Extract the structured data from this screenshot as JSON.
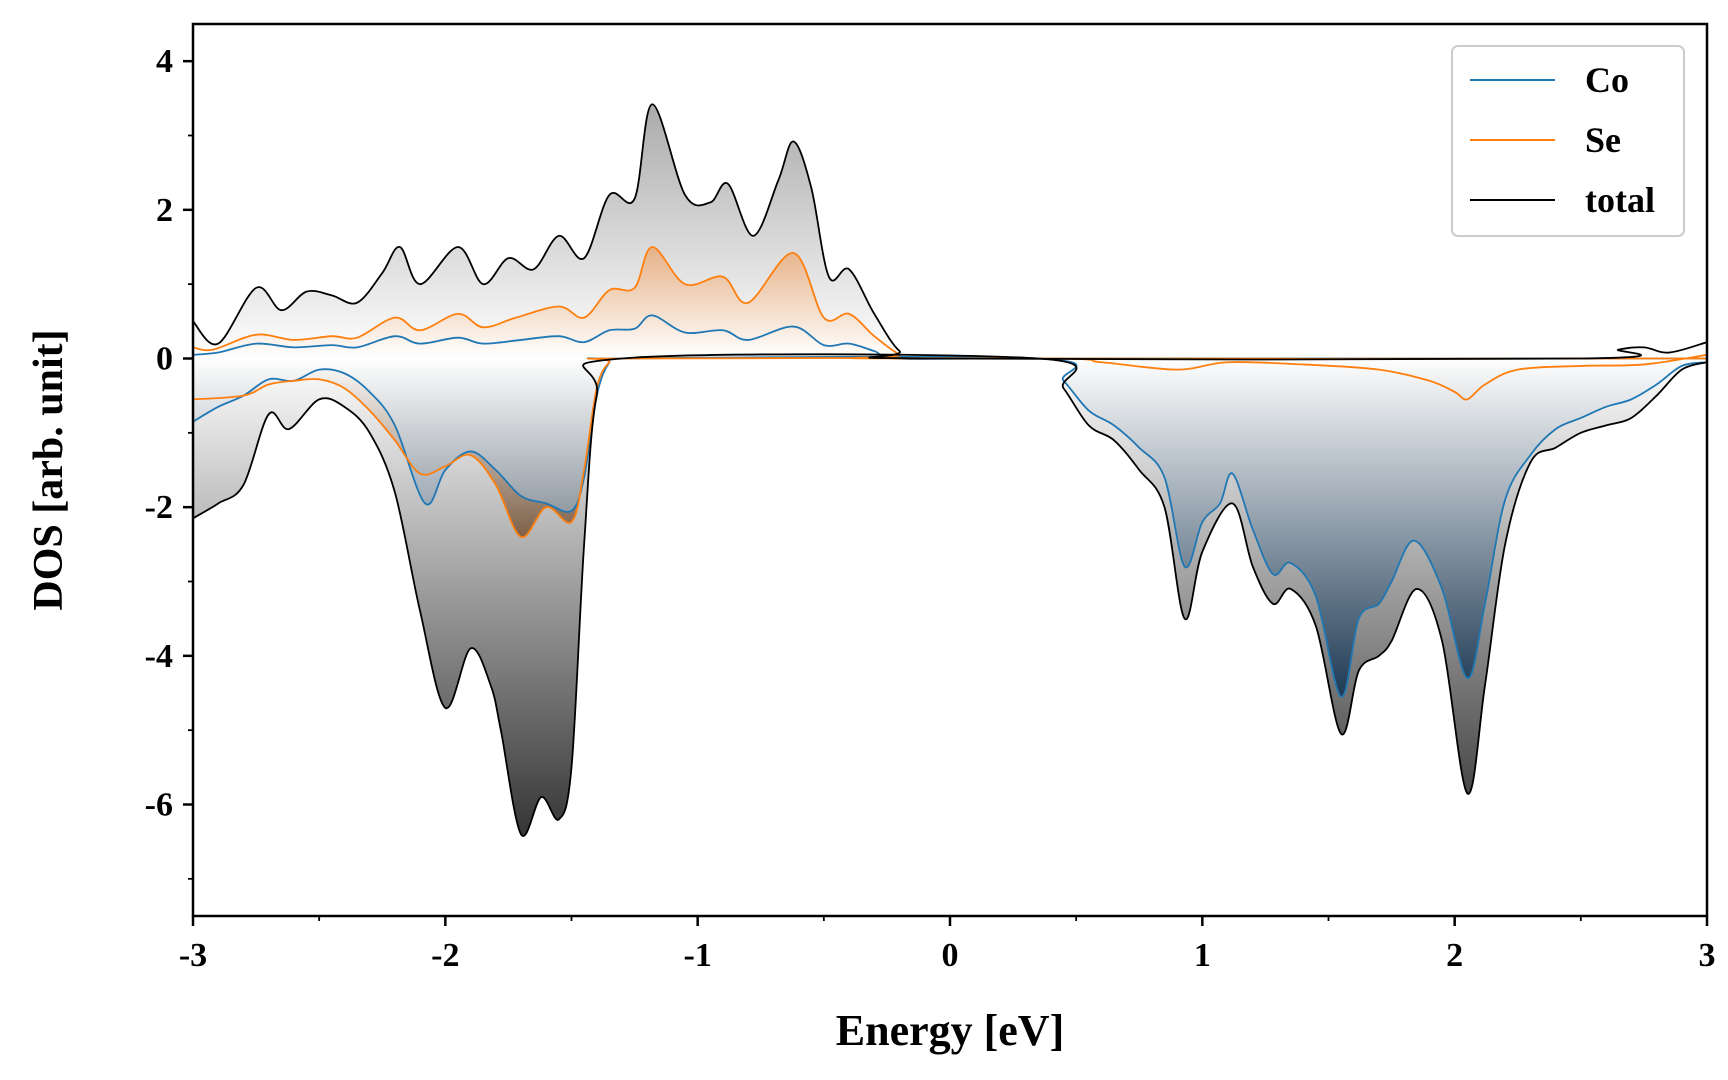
{
  "chart_data": {
    "type": "area",
    "xlabel": "Energy [eV]",
    "ylabel": "DOS [arb. unit]",
    "xlim": [
      -3,
      3
    ],
    "ylim": [
      -7.5,
      4.5
    ],
    "xticks": [
      -3,
      -2,
      -1,
      0,
      1,
      2,
      3
    ],
    "xtick_labels": [
      "-3",
      "-2",
      "-1",
      "0",
      "1",
      "2",
      "3"
    ],
    "yticks": [
      -6,
      -4,
      -2,
      0,
      2,
      4
    ],
    "ytick_labels": [
      "-6",
      "-4",
      "-2",
      "0",
      "2",
      "4"
    ],
    "grid": false,
    "legend_position": "top-right",
    "series": [
      {
        "name": "Co",
        "color": "#1f77b4",
        "spin_up": [
          [
            -3.0,
            0.05
          ],
          [
            -2.9,
            0.08
          ],
          [
            -2.75,
            0.2
          ],
          [
            -2.6,
            0.15
          ],
          [
            -2.45,
            0.18
          ],
          [
            -2.35,
            0.15
          ],
          [
            -2.2,
            0.3
          ],
          [
            -2.1,
            0.2
          ],
          [
            -1.95,
            0.28
          ],
          [
            -1.85,
            0.2
          ],
          [
            -1.7,
            0.25
          ],
          [
            -1.55,
            0.3
          ],
          [
            -1.45,
            0.22
          ],
          [
            -1.35,
            0.38
          ],
          [
            -1.25,
            0.4
          ],
          [
            -1.18,
            0.58
          ],
          [
            -1.05,
            0.35
          ],
          [
            -0.9,
            0.38
          ],
          [
            -0.8,
            0.25
          ],
          [
            -0.62,
            0.43
          ],
          [
            -0.5,
            0.18
          ],
          [
            -0.4,
            0.2
          ],
          [
            -0.3,
            0.1
          ],
          [
            -0.2,
            0.0
          ],
          [
            0.3,
            0.0
          ],
          [
            3.0,
            0.0
          ]
        ],
        "spin_down": [
          [
            -3.0,
            -0.85
          ],
          [
            -2.9,
            -0.65
          ],
          [
            -2.8,
            -0.5
          ],
          [
            -2.7,
            -0.28
          ],
          [
            -2.6,
            -0.3
          ],
          [
            -2.5,
            -0.15
          ],
          [
            -2.4,
            -0.2
          ],
          [
            -2.3,
            -0.45
          ],
          [
            -2.2,
            -0.9
          ],
          [
            -2.08,
            -1.95
          ],
          [
            -2.0,
            -1.5
          ],
          [
            -1.9,
            -1.25
          ],
          [
            -1.8,
            -1.5
          ],
          [
            -1.7,
            -1.85
          ],
          [
            -1.6,
            -1.95
          ],
          [
            -1.5,
            -2.05
          ],
          [
            -1.45,
            -1.6
          ],
          [
            -1.4,
            -0.5
          ],
          [
            -1.35,
            -0.05
          ],
          [
            -1.3,
            0.0
          ],
          [
            0.35,
            0.0
          ],
          [
            0.45,
            -0.3
          ],
          [
            0.55,
            -0.7
          ],
          [
            0.65,
            -0.9
          ],
          [
            0.75,
            -1.2
          ],
          [
            0.85,
            -1.6
          ],
          [
            0.93,
            -2.8
          ],
          [
            1.0,
            -2.2
          ],
          [
            1.07,
            -1.95
          ],
          [
            1.12,
            -1.55
          ],
          [
            1.2,
            -2.3
          ],
          [
            1.28,
            -2.9
          ],
          [
            1.35,
            -2.75
          ],
          [
            1.45,
            -3.2
          ],
          [
            1.55,
            -4.55
          ],
          [
            1.62,
            -3.5
          ],
          [
            1.7,
            -3.3
          ],
          [
            1.75,
            -3.0
          ],
          [
            1.84,
            -2.45
          ],
          [
            1.95,
            -3.1
          ],
          [
            2.05,
            -4.3
          ],
          [
            2.12,
            -3.3
          ],
          [
            2.2,
            -1.9
          ],
          [
            2.3,
            -1.3
          ],
          [
            2.4,
            -0.95
          ],
          [
            2.5,
            -0.8
          ],
          [
            2.6,
            -0.65
          ],
          [
            2.7,
            -0.55
          ],
          [
            2.8,
            -0.35
          ],
          [
            2.9,
            -0.1
          ],
          [
            3.0,
            -0.05
          ]
        ]
      },
      {
        "name": "Se",
        "color": "#ff7f0e",
        "spin_up": [
          [
            -3.0,
            0.15
          ],
          [
            -2.92,
            0.12
          ],
          [
            -2.75,
            0.32
          ],
          [
            -2.6,
            0.25
          ],
          [
            -2.45,
            0.3
          ],
          [
            -2.35,
            0.28
          ],
          [
            -2.2,
            0.55
          ],
          [
            -2.1,
            0.38
          ],
          [
            -1.95,
            0.6
          ],
          [
            -1.85,
            0.42
          ],
          [
            -1.72,
            0.55
          ],
          [
            -1.55,
            0.7
          ],
          [
            -1.45,
            0.55
          ],
          [
            -1.35,
            0.92
          ],
          [
            -1.25,
            0.95
          ],
          [
            -1.18,
            1.5
          ],
          [
            -1.05,
            1.0
          ],
          [
            -0.9,
            1.1
          ],
          [
            -0.8,
            0.75
          ],
          [
            -0.62,
            1.42
          ],
          [
            -0.5,
            0.55
          ],
          [
            -0.4,
            0.6
          ],
          [
            -0.3,
            0.3
          ],
          [
            -0.2,
            0.05
          ],
          [
            -0.15,
            0.0
          ],
          [
            3.0,
            0.0
          ]
        ],
        "spin_down": [
          [
            -3.0,
            -0.55
          ],
          [
            -2.8,
            -0.5
          ],
          [
            -2.7,
            -0.35
          ],
          [
            -2.6,
            -0.3
          ],
          [
            -2.5,
            -0.28
          ],
          [
            -2.4,
            -0.4
          ],
          [
            -2.3,
            -0.7
          ],
          [
            -2.2,
            -1.1
          ],
          [
            -2.1,
            -1.55
          ],
          [
            -2.0,
            -1.45
          ],
          [
            -1.9,
            -1.3
          ],
          [
            -1.8,
            -1.7
          ],
          [
            -1.7,
            -2.4
          ],
          [
            -1.6,
            -2.0
          ],
          [
            -1.5,
            -2.2
          ],
          [
            -1.45,
            -1.5
          ],
          [
            -1.4,
            -0.4
          ],
          [
            -1.35,
            -0.05
          ],
          [
            -1.3,
            0.0
          ],
          [
            0.35,
            0.0
          ],
          [
            0.6,
            -0.05
          ],
          [
            0.9,
            -0.15
          ],
          [
            1.1,
            -0.05
          ],
          [
            1.4,
            -0.08
          ],
          [
            1.7,
            -0.15
          ],
          [
            1.9,
            -0.3
          ],
          [
            2.0,
            -0.45
          ],
          [
            2.05,
            -0.55
          ],
          [
            2.12,
            -0.35
          ],
          [
            2.25,
            -0.15
          ],
          [
            2.5,
            -0.1
          ],
          [
            2.75,
            -0.08
          ],
          [
            3.0,
            0.05
          ]
        ]
      },
      {
        "name": "total",
        "color": "#000000",
        "spin_up": [
          [
            -3.0,
            0.5
          ],
          [
            -2.9,
            0.2
          ],
          [
            -2.75,
            0.95
          ],
          [
            -2.65,
            0.65
          ],
          [
            -2.55,
            0.9
          ],
          [
            -2.45,
            0.85
          ],
          [
            -2.35,
            0.75
          ],
          [
            -2.25,
            1.15
          ],
          [
            -2.18,
            1.5
          ],
          [
            -2.1,
            1.0
          ],
          [
            -1.95,
            1.5
          ],
          [
            -1.85,
            1.0
          ],
          [
            -1.75,
            1.35
          ],
          [
            -1.65,
            1.2
          ],
          [
            -1.55,
            1.65
          ],
          [
            -1.45,
            1.35
          ],
          [
            -1.35,
            2.2
          ],
          [
            -1.25,
            2.15
          ],
          [
            -1.18,
            3.42
          ],
          [
            -1.05,
            2.2
          ],
          [
            -0.95,
            2.1
          ],
          [
            -0.88,
            2.35
          ],
          [
            -0.78,
            1.65
          ],
          [
            -0.68,
            2.4
          ],
          [
            -0.62,
            2.92
          ],
          [
            -0.55,
            2.3
          ],
          [
            -0.48,
            1.1
          ],
          [
            -0.4,
            1.2
          ],
          [
            -0.3,
            0.6
          ],
          [
            -0.2,
            0.1
          ],
          [
            -0.1,
            0.0
          ],
          [
            2.5,
            0.0
          ],
          [
            2.65,
            0.12
          ],
          [
            2.75,
            0.15
          ],
          [
            2.85,
            0.08
          ],
          [
            3.0,
            0.22
          ]
        ],
        "spin_down": [
          [
            -3.0,
            -2.15
          ],
          [
            -2.9,
            -1.95
          ],
          [
            -2.8,
            -1.7
          ],
          [
            -2.7,
            -0.75
          ],
          [
            -2.62,
            -0.95
          ],
          [
            -2.5,
            -0.55
          ],
          [
            -2.4,
            -0.65
          ],
          [
            -2.3,
            -1.0
          ],
          [
            -2.2,
            -1.8
          ],
          [
            -2.1,
            -3.4
          ],
          [
            -2.0,
            -4.7
          ],
          [
            -1.9,
            -3.9
          ],
          [
            -1.82,
            -4.4
          ],
          [
            -1.78,
            -5.0
          ],
          [
            -1.7,
            -6.4
          ],
          [
            -1.62,
            -5.9
          ],
          [
            -1.55,
            -6.2
          ],
          [
            -1.5,
            -5.5
          ],
          [
            -1.45,
            -2.5
          ],
          [
            -1.4,
            -0.5
          ],
          [
            -1.3,
            0.0
          ],
          [
            0.35,
            0.0
          ],
          [
            0.45,
            -0.4
          ],
          [
            0.55,
            -0.9
          ],
          [
            0.65,
            -1.1
          ],
          [
            0.75,
            -1.5
          ],
          [
            0.85,
            -2.0
          ],
          [
            0.93,
            -3.5
          ],
          [
            1.0,
            -2.6
          ],
          [
            1.12,
            -1.95
          ],
          [
            1.2,
            -2.8
          ],
          [
            1.28,
            -3.3
          ],
          [
            1.35,
            -3.1
          ],
          [
            1.45,
            -3.6
          ],
          [
            1.55,
            -5.05
          ],
          [
            1.62,
            -4.2
          ],
          [
            1.7,
            -4.0
          ],
          [
            1.75,
            -3.8
          ],
          [
            1.85,
            -3.1
          ],
          [
            1.95,
            -3.8
          ],
          [
            2.05,
            -5.85
          ],
          [
            2.12,
            -4.4
          ],
          [
            2.2,
            -2.5
          ],
          [
            2.3,
            -1.4
          ],
          [
            2.4,
            -1.2
          ],
          [
            2.5,
            -1.0
          ],
          [
            2.6,
            -0.9
          ],
          [
            2.7,
            -0.8
          ],
          [
            2.8,
            -0.5
          ],
          [
            2.9,
            -0.15
          ],
          [
            3.0,
            -0.05
          ]
        ]
      }
    ]
  }
}
